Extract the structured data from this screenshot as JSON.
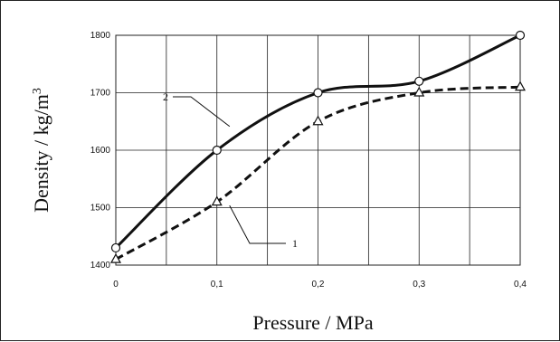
{
  "chart_data": {
    "type": "line",
    "xlabel": "Pressure / MPa",
    "ylabel": "Density / kg/m",
    "ylabel_sup": "3",
    "x": [
      0,
      0.1,
      0.2,
      0.3,
      0.4
    ],
    "x_tick_labels": [
      "0",
      "0,1",
      "0,2",
      "0,3",
      "0,4"
    ],
    "y_ticks": [
      1400,
      1500,
      1600,
      1700,
      1800
    ],
    "y_tick_labels": [
      "1400",
      "1500",
      "1600",
      "1700",
      "1800"
    ],
    "xlim": [
      0,
      0.4
    ],
    "ylim": [
      1400,
      1800
    ],
    "grid": true,
    "series": [
      {
        "name": "2",
        "marker": "circle",
        "line_style": "solid",
        "color": "#111111",
        "values": [
          1430,
          1600,
          1700,
          1720,
          1800
        ]
      },
      {
        "name": "1",
        "marker": "triangle",
        "line_style": "dashed",
        "color": "#111111",
        "values": [
          1410,
          1510,
          1650,
          1700,
          1710
        ]
      }
    ],
    "annotations": [
      {
        "label": "2",
        "points_to_series": "2",
        "at_x": 0.1
      },
      {
        "label": "1",
        "points_to_series": "1",
        "at_x": 0.1
      }
    ]
  }
}
